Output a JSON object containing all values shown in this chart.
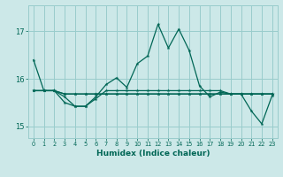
{
  "xlabel": "Humidex (Indice chaleur)",
  "background_color": "#cce8e8",
  "grid_color": "#99cccc",
  "line_color": "#006655",
  "x_values": [
    0,
    1,
    2,
    3,
    4,
    5,
    6,
    7,
    8,
    9,
    10,
    11,
    12,
    13,
    14,
    15,
    16,
    17,
    18,
    19,
    20,
    21,
    22,
    23
  ],
  "series": [
    [
      16.4,
      15.75,
      15.75,
      15.5,
      15.42,
      15.42,
      15.62,
      15.88,
      16.02,
      15.82,
      16.32,
      16.48,
      17.15,
      16.65,
      17.05,
      16.6,
      15.85,
      15.62,
      15.72,
      15.68,
      15.68,
      15.32,
      15.05,
      15.65
    ],
    [
      15.75,
      15.75,
      15.75,
      15.62,
      15.42,
      15.42,
      15.58,
      15.75,
      15.75,
      15.75,
      15.75,
      15.75,
      15.75,
      15.75,
      15.75,
      15.75,
      15.75,
      15.75,
      15.75,
      15.68,
      15.68,
      15.68,
      15.68,
      15.68
    ],
    [
      15.75,
      15.75,
      15.75,
      15.68,
      15.68,
      15.68,
      15.68,
      15.68,
      15.68,
      15.68,
      15.68,
      15.68,
      15.68,
      15.68,
      15.68,
      15.68,
      15.68,
      15.68,
      15.68,
      15.68,
      15.68,
      15.68,
      15.68,
      15.68
    ],
    [
      15.75,
      15.75,
      15.75,
      15.68,
      15.68,
      15.68,
      15.68,
      15.68,
      15.68,
      15.68,
      15.68,
      15.68,
      15.68,
      15.68,
      15.68,
      15.68,
      15.68,
      15.68,
      15.68,
      15.68,
      15.68,
      15.68,
      15.68,
      15.68
    ]
  ],
  "yticks": [
    15,
    16,
    17
  ],
  "ylim": [
    14.75,
    17.55
  ],
  "xlim": [
    -0.5,
    23.5
  ],
  "figsize": [
    3.2,
    2.0
  ],
  "dpi": 100
}
